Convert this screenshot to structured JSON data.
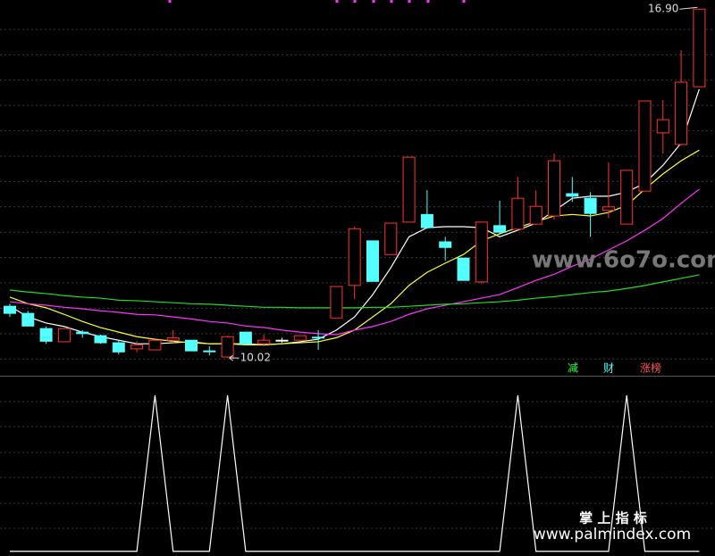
{
  "chart_data": [
    {
      "type": "candlestick",
      "open": [
        11.04,
        10.9,
        10.6,
        10.34,
        10.53,
        10.46,
        10.32,
        10.2,
        10.18,
        10.37,
        10.37,
        10.16,
        10.04,
        10.53,
        10.3,
        10.37,
        10.37,
        10.43,
        10.81,
        11.45,
        12.33,
        12.06,
        12.7,
        12.85,
        12.31,
        11.99,
        11.52,
        12.63,
        12.56,
        12.66,
        12.82,
        13.26,
        13.17,
        12.93,
        12.66,
        13.31,
        14.46,
        14.23,
        15.37
      ],
      "high": [
        11.09,
        10.95,
        10.64,
        10.6,
        10.57,
        10.48,
        10.37,
        10.35,
        10.37,
        10.57,
        10.37,
        10.25,
        10.46,
        10.53,
        10.48,
        10.42,
        10.46,
        10.57,
        11.43,
        12.61,
        12.33,
        12.68,
        13.98,
        13.33,
        12.41,
        11.99,
        12.71,
        13.12,
        13.59,
        13.33,
        14.05,
        13.59,
        13.29,
        13.88,
        13.72,
        15.09,
        15.11,
        16.09,
        16.9
      ],
      "low": [
        10.83,
        10.64,
        10.3,
        10.34,
        10.42,
        10.3,
        10.09,
        10.14,
        10.18,
        10.3,
        10.16,
        10.07,
        10.02,
        10.3,
        10.25,
        10.32,
        10.37,
        10.18,
        10.81,
        11.18,
        11.53,
        12.06,
        12.7,
        12.57,
        11.94,
        11.55,
        11.48,
        12.45,
        12.54,
        12.64,
        12.75,
        13.1,
        12.41,
        12.78,
        12.66,
        13.31,
        14.05,
        14.21,
        15.37
      ],
      "close": [
        10.9,
        10.65,
        10.35,
        10.6,
        10.5,
        10.32,
        10.14,
        10.28,
        10.37,
        10.42,
        10.16,
        10.15,
        10.44,
        10.3,
        10.37,
        10.37,
        10.46,
        10.42,
        11.43,
        12.57,
        11.53,
        12.68,
        13.98,
        12.59,
        12.2,
        11.55,
        12.7,
        12.5,
        13.17,
        13.01,
        13.91,
        13.21,
        12.87,
        13.0,
        13.72,
        15.09,
        14.72,
        15.46,
        16.9
      ],
      "up_color": "#ff3232",
      "down_color": "#54ffff",
      "flat_color": "#ffffff",
      "series": [
        {
          "color": "#ffffff",
          "values": [
            11.04,
            10.83,
            10.71,
            10.64,
            10.53,
            10.44,
            10.37,
            10.3,
            10.3,
            10.32,
            10.34,
            10.3,
            10.3,
            10.3,
            10.28,
            10.3,
            10.34,
            10.39,
            10.57,
            10.83,
            11.27,
            11.8,
            12.41,
            12.59,
            12.61,
            12.61,
            12.59,
            12.41,
            12.54,
            12.68,
            12.92,
            13.17,
            13.21,
            13.21,
            13.29,
            13.47,
            13.82,
            14.26,
            15.32
          ]
        },
        {
          "color": "#ffff33",
          "values": [
            11.22,
            11.09,
            11.01,
            10.88,
            10.74,
            10.62,
            10.53,
            10.44,
            10.39,
            10.35,
            10.32,
            10.3,
            10.3,
            10.28,
            10.28,
            10.3,
            10.32,
            10.34,
            10.42,
            10.57,
            10.83,
            11.09,
            11.45,
            11.71,
            11.89,
            12.06,
            12.33,
            12.47,
            12.59,
            12.71,
            12.82,
            12.85,
            12.82,
            12.89,
            13.03,
            13.35,
            13.65,
            13.91,
            14.12
          ]
        },
        {
          "color": "#ff33ff",
          "values": [
            11.13,
            11.09,
            11.06,
            11.02,
            10.99,
            10.95,
            10.92,
            10.88,
            10.87,
            10.83,
            10.79,
            10.74,
            10.71,
            10.65,
            10.62,
            10.57,
            10.53,
            10.5,
            10.48,
            10.57,
            10.64,
            10.74,
            10.88,
            10.99,
            11.06,
            11.13,
            11.2,
            11.27,
            11.41,
            11.55,
            11.67,
            11.83,
            11.97,
            12.15,
            12.33,
            12.54,
            12.77,
            13.07,
            13.35
          ]
        },
        {
          "color": "#22dd22",
          "values": [
            11.36,
            11.32,
            11.29,
            11.25,
            11.22,
            11.2,
            11.16,
            11.15,
            11.13,
            11.11,
            11.09,
            11.08,
            11.06,
            11.04,
            11.02,
            11.02,
            11.01,
            11.01,
            11.01,
            11.01,
            11.02,
            11.02,
            11.04,
            11.06,
            11.08,
            11.09,
            11.11,
            11.13,
            11.16,
            11.2,
            11.23,
            11.27,
            11.31,
            11.34,
            11.39,
            11.45,
            11.52,
            11.59,
            11.66
          ]
        }
      ],
      "ylim": [
        9.67,
        17.08
      ],
      "yticks": [
        10,
        10.5,
        11,
        11.5,
        12,
        12.5,
        13,
        13.5,
        14,
        14.5,
        15,
        15.5,
        16,
        16.5
      ],
      "grid": true,
      "annotations": [
        {
          "text": "16.90",
          "index": 38
        },
        {
          "text": "10.02",
          "index": 12
        }
      ],
      "legend": [
        {
          "text": "减",
          "color": "#33ff33"
        },
        {
          "text": "财",
          "color": "#54ffff"
        },
        {
          "text": "涨榜",
          "color": "#ff5555"
        }
      ],
      "watermark": "www.6o7o.com"
    },
    {
      "type": "line",
      "series": [
        {
          "color": "#ffffff",
          "values": [
            0,
            0,
            0,
            0,
            0,
            0,
            0,
            0,
            1,
            0,
            0,
            0,
            1,
            0,
            0,
            0,
            0,
            0,
            0,
            0,
            0,
            0,
            0,
            0,
            0,
            0,
            0,
            0,
            1,
            0,
            0,
            0,
            0,
            0,
            1,
            0,
            0,
            0,
            0
          ]
        }
      ],
      "ylim": [
        -0.03,
        1.12
      ],
      "watermark_title": "掌 上 指 标",
      "watermark_url": "www.palmindex.com"
    }
  ]
}
